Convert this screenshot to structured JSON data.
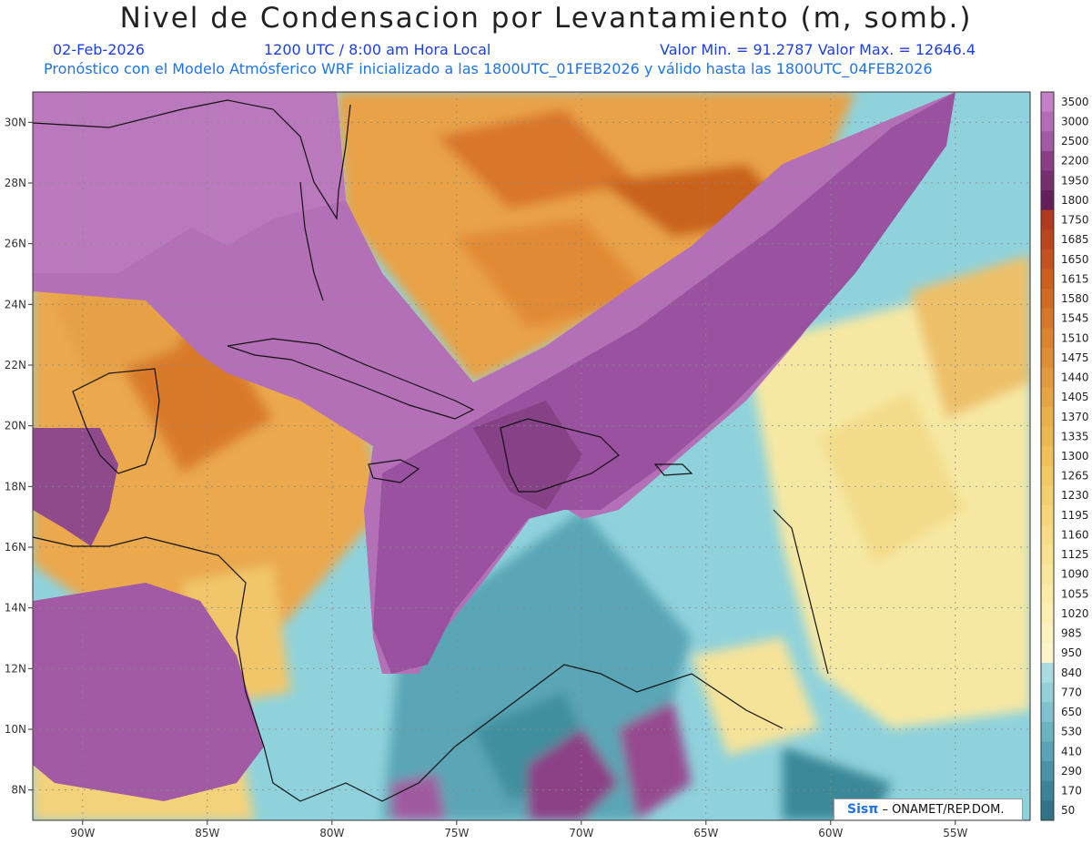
{
  "header": {
    "title": "Nivel de Condensacion por Levantamiento (m, somb.)",
    "date": "02-Feb-2026",
    "time": "1200 UTC / 8:00 am Hora Local",
    "range": "Valor Min. = 91.2787  Valor Max. = 12646.4",
    "description": "Pronóstico con el Modelo Atmósferico WRF inicializado a las 1800UTC_01FEB2026 y válido hasta las  1800UTC_04FEB2026"
  },
  "credit": {
    "sis": "Sisπ",
    "org": "– ONAMET/REP.DOM."
  },
  "chart_data": {
    "type": "heatmap",
    "lon_ticks": [
      "90W",
      "85W",
      "80W",
      "75W",
      "70W",
      "65W",
      "60W",
      "55W"
    ],
    "lat_ticks": [
      "30N",
      "28N",
      "26N",
      "24N",
      "22N",
      "20N",
      "18N",
      "16N",
      "14N",
      "12N",
      "10N",
      "8N"
    ],
    "lon_values": [
      -90,
      -85,
      -80,
      -75,
      -70,
      -65,
      -60,
      -55
    ],
    "lat_values": [
      30,
      28,
      26,
      24,
      22,
      20,
      18,
      16,
      14,
      12,
      10,
      8
    ],
    "lon_range": [
      -92,
      -52
    ],
    "lat_range": [
      7,
      31
    ],
    "grid": true,
    "colorbar_labels": [
      "3500",
      "3000",
      "2500",
      "2200",
      "1950",
      "1800",
      "1750",
      "1685",
      "1650",
      "1615",
      "1580",
      "1545",
      "1510",
      "1475",
      "1440",
      "1405",
      "1370",
      "1335",
      "1300",
      "1265",
      "1230",
      "1195",
      "1160",
      "1125",
      "1090",
      "1055",
      "1020",
      "985",
      "950",
      "840",
      "770",
      "650",
      "530",
      "410",
      "290",
      "170",
      "50"
    ],
    "colorbar_colors": [
      "#c681c6",
      "#b46cb4",
      "#a25aa2",
      "#8a3f85",
      "#762e6c",
      "#651f58",
      "#b03a1e",
      "#b9461e",
      "#c2531f",
      "#ca5f20",
      "#d06b24",
      "#d5772a",
      "#da8330",
      "#df8e37",
      "#e3993d",
      "#e7a444",
      "#eaae4a",
      "#edb752",
      "#f0c05b",
      "#f2c865",
      "#f4cf70",
      "#f6d67b",
      "#f7dc87",
      "#f8e292",
      "#f9e79d",
      "#faeba8",
      "#fbefb4",
      "#fcf2c0",
      "#fcf5cc",
      "#a8dce0",
      "#94d0d8",
      "#80c2cd",
      "#6cb3c1",
      "#5aa3b3",
      "#4a93a4",
      "#3c8394",
      "#307485"
    ]
  }
}
